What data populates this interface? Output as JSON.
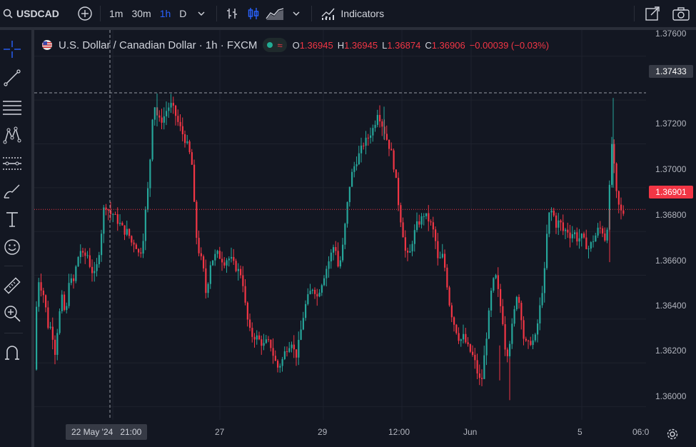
{
  "toolbar": {
    "symbol": "USDCAD",
    "intervals": [
      "1m",
      "30m",
      "1h",
      "D"
    ],
    "active_interval": "1h",
    "indicators_label": "Indicators"
  },
  "legend": {
    "title": "U.S. Dollar / Canadian Dollar · 1h · FXCM",
    "open_label": "O",
    "open": "1.36945",
    "high_label": "H",
    "high": "1.36945",
    "low_label": "L",
    "low": "1.36874",
    "close_label": "C",
    "close": "1.36906",
    "change": "−0.00039 (−0.03%)"
  },
  "crosshair": {
    "date": "22 May '24",
    "time": "21:00",
    "price": "1.37433"
  },
  "last_price": "1.36901",
  "colors": {
    "up": "#26a69a",
    "down": "#f23645",
    "background": "#131722",
    "grid": "#1e222d",
    "accent": "#2962ff"
  },
  "chart_data": {
    "type": "candlestick",
    "instrument": "USDCAD",
    "interval": "1h",
    "y_ticks": [
      "1.37600",
      "1.37400",
      "1.37200",
      "1.37000",
      "1.36800",
      "1.36600",
      "1.36400",
      "1.36200",
      "1.36000"
    ],
    "x_ticks": [
      "27",
      "29",
      "12:00",
      "Jun",
      "5",
      "06:0"
    ],
    "ylim": [
      1.3594,
      1.3772
    ],
    "crosshair_price": 1.37433,
    "last_price": 1.36901,
    "path": [
      [
        0,
        1.3617
      ],
      [
        3,
        1.366
      ],
      [
        8,
        1.3655
      ],
      [
        13,
        1.365
      ],
      [
        18,
        1.3637
      ],
      [
        23,
        1.3636
      ],
      [
        28,
        1.3625
      ],
      [
        33,
        1.364
      ],
      [
        38,
        1.365
      ],
      [
        43,
        1.364
      ],
      [
        48,
        1.366
      ],
      [
        53,
        1.3655
      ],
      [
        58,
        1.3665
      ],
      [
        63,
        1.3672
      ],
      [
        68,
        1.3668
      ],
      [
        73,
        1.367
      ],
      [
        78,
        1.3663
      ],
      [
        83,
        1.366
      ],
      [
        88,
        1.3666
      ],
      [
        93,
        1.368
      ],
      [
        96,
        1.369
      ],
      [
        100,
        1.3692
      ],
      [
        105,
        1.3688
      ],
      [
        110,
        1.3688
      ],
      [
        115,
        1.3685
      ],
      [
        120,
        1.3683
      ],
      [
        125,
        1.368
      ],
      [
        130,
        1.368
      ],
      [
        135,
        1.3675
      ],
      [
        140,
        1.3675
      ],
      [
        145,
        1.367
      ],
      [
        150,
        1.3672
      ],
      [
        155,
        1.369
      ],
      [
        160,
        1.3705
      ],
      [
        163,
        1.3725
      ],
      [
        166,
        1.374
      ],
      [
        170,
        1.3734
      ],
      [
        175,
        1.373
      ],
      [
        180,
        1.3732
      ],
      [
        185,
        1.3736
      ],
      [
        190,
        1.3738
      ],
      [
        195,
        1.3735
      ],
      [
        200,
        1.373
      ],
      [
        205,
        1.3726
      ],
      [
        210,
        1.3722
      ],
      [
        215,
        1.3718
      ],
      [
        220,
        1.371
      ],
      [
        225,
        1.368
      ],
      [
        230,
        1.367
      ],
      [
        235,
        1.3665
      ],
      [
        240,
        1.365
      ],
      [
        245,
        1.3665
      ],
      [
        250,
        1.3668
      ],
      [
        255,
        1.367
      ],
      [
        260,
        1.3668
      ],
      [
        265,
        1.3666
      ],
      [
        270,
        1.3668
      ],
      [
        275,
        1.3667
      ],
      [
        280,
        1.3664
      ],
      [
        285,
        1.3662
      ],
      [
        290,
        1.366
      ],
      [
        295,
        1.3645
      ],
      [
        300,
        1.3635
      ],
      [
        305,
        1.3632
      ],
      [
        310,
        1.3632
      ],
      [
        315,
        1.363
      ],
      [
        320,
        1.3628
      ],
      [
        325,
        1.363
      ],
      [
        330,
        1.3628
      ],
      [
        335,
        1.3622
      ],
      [
        340,
        1.3618
      ],
      [
        345,
        1.362
      ],
      [
        350,
        1.3625
      ],
      [
        355,
        1.3628
      ],
      [
        360,
        1.363
      ],
      [
        365,
        1.3622
      ],
      [
        370,
        1.363
      ],
      [
        375,
        1.364
      ],
      [
        380,
        1.3648
      ],
      [
        385,
        1.3652
      ],
      [
        390,
        1.3655
      ],
      [
        395,
        1.365
      ],
      [
        400,
        1.3655
      ],
      [
        405,
        1.366
      ],
      [
        410,
        1.3665
      ],
      [
        415,
        1.367
      ],
      [
        420,
        1.3675
      ],
      [
        425,
        1.3663
      ],
      [
        430,
        1.367
      ],
      [
        435,
        1.3685
      ],
      [
        440,
        1.37
      ],
      [
        445,
        1.3708
      ],
      [
        450,
        1.3712
      ],
      [
        455,
        1.3716
      ],
      [
        460,
        1.372
      ],
      [
        465,
        1.3722
      ],
      [
        470,
        1.3725
      ],
      [
        475,
        1.3728
      ],
      [
        480,
        1.3735
      ],
      [
        485,
        1.373
      ],
      [
        490,
        1.3725
      ],
      [
        495,
        1.372
      ],
      [
        500,
        1.3715
      ],
      [
        505,
        1.3705
      ],
      [
        510,
        1.369
      ],
      [
        515,
        1.368
      ],
      [
        520,
        1.3668
      ],
      [
        525,
        1.367
      ],
      [
        530,
        1.3678
      ],
      [
        535,
        1.3683
      ],
      [
        540,
        1.3685
      ],
      [
        545,
        1.3688
      ],
      [
        550,
        1.3686
      ],
      [
        555,
        1.3683
      ],
      [
        560,
        1.3678
      ],
      [
        565,
        1.3665
      ],
      [
        570,
        1.367
      ],
      [
        575,
        1.3662
      ],
      [
        580,
        1.3648
      ],
      [
        585,
        1.364
      ],
      [
        590,
        1.3635
      ],
      [
        595,
        1.363
      ],
      [
        600,
        1.3632
      ],
      [
        605,
        1.3628
      ],
      [
        610,
        1.3625
      ],
      [
        615,
        1.3622
      ],
      [
        620,
        1.3615
      ],
      [
        625,
        1.361
      ],
      [
        630,
        1.3625
      ],
      [
        635,
        1.364
      ],
      [
        640,
        1.3655
      ],
      [
        645,
        1.366
      ],
      [
        650,
        1.365
      ],
      [
        655,
        1.364
      ],
      [
        660,
        1.3622
      ],
      [
        665,
        1.363
      ],
      [
        670,
        1.364
      ],
      [
        675,
        1.3652
      ],
      [
        680,
        1.3645
      ],
      [
        685,
        1.363
      ],
      [
        690,
        1.3628
      ],
      [
        695,
        1.363
      ],
      [
        700,
        1.363
      ],
      [
        705,
        1.364
      ],
      [
        710,
        1.3652
      ],
      [
        715,
        1.3665
      ],
      [
        718,
        1.3685
      ],
      [
        722,
        1.369
      ],
      [
        726,
        1.3688
      ],
      [
        730,
        1.3683
      ],
      [
        735,
        1.3685
      ],
      [
        740,
        1.368
      ],
      [
        745,
        1.3681
      ],
      [
        750,
        1.3678
      ],
      [
        755,
        1.368
      ],
      [
        760,
        1.3676
      ],
      [
        765,
        1.3678
      ],
      [
        770,
        1.3675
      ],
      [
        775,
        1.3672
      ],
      [
        780,
        1.3675
      ],
      [
        785,
        1.3678
      ],
      [
        790,
        1.3682
      ],
      [
        795,
        1.368
      ],
      [
        800,
        1.3675
      ],
      [
        804,
        1.3695
      ],
      [
        808,
        1.372
      ],
      [
        810,
        1.3716
      ],
      [
        813,
        1.37
      ],
      [
        816,
        1.3694
      ],
      [
        819,
        1.369
      ],
      [
        823,
        1.3688
      ],
      [
        827,
        1.369
      ]
    ]
  }
}
